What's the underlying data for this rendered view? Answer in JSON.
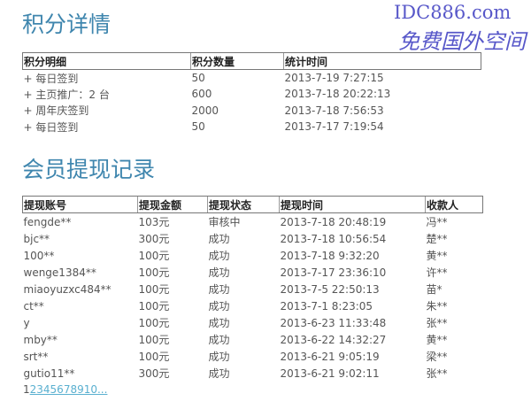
{
  "points": {
    "title": "积分详情",
    "headers": [
      "积分明细",
      "积分数量",
      "统计时间"
    ],
    "rows": [
      [
        "+ 每日签到",
        "50",
        "2013-7-19 7:27:15"
      ],
      [
        "+ 主页推广：2 台",
        "600",
        "2013-7-18 20:22:13"
      ],
      [
        "+ 周年庆签到",
        "2000",
        "2013-7-18 7:56:53"
      ],
      [
        "+ 每日签到",
        "50",
        "2013-7-17 7:19:54"
      ]
    ]
  },
  "withdraw": {
    "title": "会员提现记录",
    "headers": [
      "提现账号",
      "提现金额",
      "提现状态",
      "提现时间",
      "收款人"
    ],
    "rows": [
      [
        "fengde**",
        "103元",
        "审核中",
        "2013-7-18 20:48:19",
        "冯**"
      ],
      [
        "bjc**",
        "300元",
        "成功",
        "2013-7-18 10:56:54",
        "楚**"
      ],
      [
        "100**",
        "100元",
        "成功",
        "2013-7-18 9:32:20",
        "黄**"
      ],
      [
        "wenge1384**",
        "100元",
        "成功",
        "2013-7-17 23:36:10",
        "许**"
      ],
      [
        "miaoyuzxc484**",
        "100元",
        "成功",
        "2013-7-5 22:50:13",
        "苗*"
      ],
      [
        "ct**",
        "100元",
        "成功",
        "2013-7-1 8:23:05",
        "朱**"
      ],
      [
        "y",
        "100元",
        "成功",
        "2013-6-23 11:33:48",
        "张**"
      ],
      [
        "mby**",
        "100元",
        "成功",
        "2013-6-22 14:32:27",
        "黄**"
      ],
      [
        "srt**",
        "100元",
        "成功",
        "2013-6-21 9:05:19",
        "梁**"
      ],
      [
        "gutio11**",
        "300元",
        "成功",
        "2013-6-21 9:02:11",
        "张**"
      ]
    ]
  },
  "pager": {
    "current": "1",
    "links": "2345678910..."
  },
  "watermark": {
    "line1": "IDC886.com",
    "line2": "免费国外空间"
  }
}
